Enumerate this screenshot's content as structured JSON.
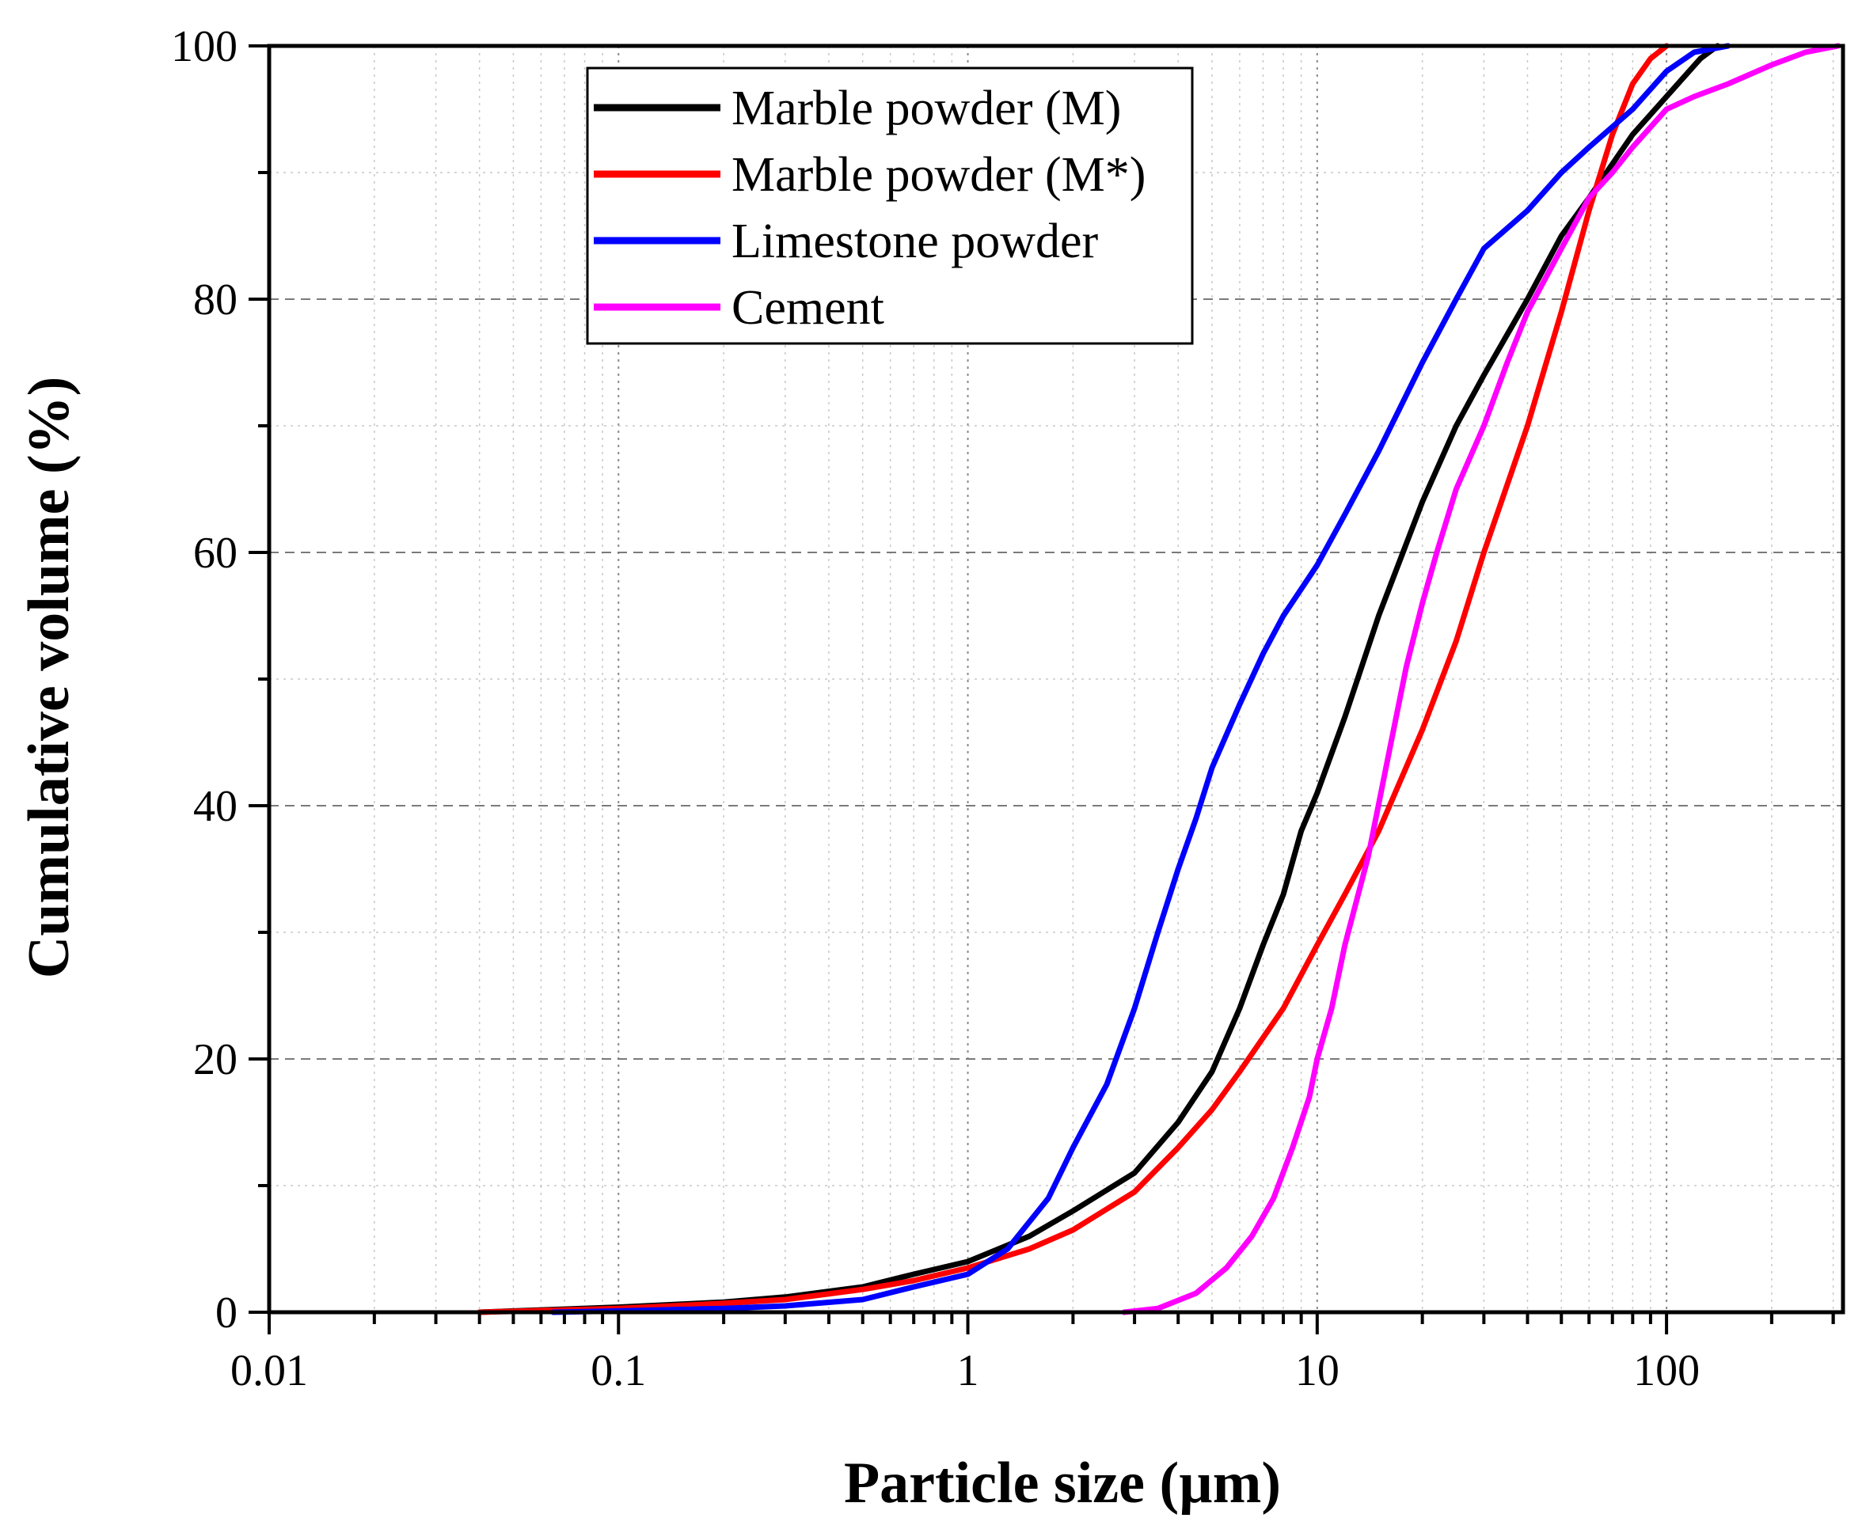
{
  "chart_data": {
    "type": "line",
    "title": "",
    "xlabel": "Particle size (µm)",
    "ylabel": "Cumulative volume (%)",
    "xscale": "log",
    "xlim": [
      0.01,
      320
    ],
    "ylim": [
      0,
      100
    ],
    "x_ticks": [
      {
        "value": 0.01,
        "label": "0.01"
      },
      {
        "value": 0.1,
        "label": "0.1"
      },
      {
        "value": 1,
        "label": "1"
      },
      {
        "value": 10,
        "label": "10"
      },
      {
        "value": 100,
        "label": "100"
      }
    ],
    "y_ticks": [
      {
        "value": 0,
        "label": "0"
      },
      {
        "value": 20,
        "label": "20"
      },
      {
        "value": 40,
        "label": "40"
      },
      {
        "value": 60,
        "label": "60"
      },
      {
        "value": 80,
        "label": "80"
      },
      {
        "value": 100,
        "label": "100"
      }
    ],
    "grid": true,
    "legend_position": "top-left",
    "series": [
      {
        "name": "Marble powder (M)",
        "color": "#000000",
        "points": [
          [
            0.04,
            0
          ],
          [
            0.1,
            0.4
          ],
          [
            0.2,
            0.8
          ],
          [
            0.3,
            1.2
          ],
          [
            0.5,
            2
          ],
          [
            0.7,
            3
          ],
          [
            1,
            4
          ],
          [
            1.5,
            6
          ],
          [
            2,
            8
          ],
          [
            3,
            11
          ],
          [
            4,
            15
          ],
          [
            5,
            19
          ],
          [
            6,
            24
          ],
          [
            7,
            29
          ],
          [
            8,
            33
          ],
          [
            9,
            38
          ],
          [
            10,
            41
          ],
          [
            12,
            47
          ],
          [
            15,
            55
          ],
          [
            20,
            64
          ],
          [
            25,
            70
          ],
          [
            30,
            74
          ],
          [
            40,
            80
          ],
          [
            50,
            85
          ],
          [
            60,
            88
          ],
          [
            80,
            93
          ],
          [
            100,
            96
          ],
          [
            125,
            99
          ],
          [
            140,
            100
          ]
        ]
      },
      {
        "name": "Marble powder (M*)",
        "color": "#ff0000",
        "points": [
          [
            0.04,
            0
          ],
          [
            0.1,
            0.3
          ],
          [
            0.2,
            0.7
          ],
          [
            0.3,
            1
          ],
          [
            0.5,
            1.8
          ],
          [
            0.7,
            2.5
          ],
          [
            1,
            3.5
          ],
          [
            1.5,
            5
          ],
          [
            2,
            6.5
          ],
          [
            3,
            9.5
          ],
          [
            4,
            13
          ],
          [
            5,
            16
          ],
          [
            6,
            19
          ],
          [
            8,
            24
          ],
          [
            10,
            29
          ],
          [
            12,
            33
          ],
          [
            15,
            38
          ],
          [
            20,
            46
          ],
          [
            25,
            53
          ],
          [
            30,
            60
          ],
          [
            40,
            70
          ],
          [
            50,
            79
          ],
          [
            60,
            87
          ],
          [
            70,
            93
          ],
          [
            80,
            97
          ],
          [
            90,
            99
          ],
          [
            100,
            100
          ]
        ]
      },
      {
        "name": "Limestone powder",
        "color": "#0000ff",
        "points": [
          [
            0.065,
            0
          ],
          [
            0.1,
            0.1
          ],
          [
            0.2,
            0.3
          ],
          [
            0.3,
            0.5
          ],
          [
            0.5,
            1
          ],
          [
            0.7,
            2
          ],
          [
            1,
            3
          ],
          [
            1.3,
            5
          ],
          [
            1.7,
            9
          ],
          [
            2,
            13
          ],
          [
            2.5,
            18
          ],
          [
            3,
            24
          ],
          [
            3.5,
            30
          ],
          [
            4,
            35
          ],
          [
            4.5,
            39
          ],
          [
            5,
            43
          ],
          [
            6,
            48
          ],
          [
            7,
            52
          ],
          [
            8,
            55
          ],
          [
            10,
            59
          ],
          [
            12,
            63
          ],
          [
            15,
            68
          ],
          [
            20,
            75
          ],
          [
            25,
            80
          ],
          [
            30,
            84
          ],
          [
            40,
            87
          ],
          [
            50,
            90
          ],
          [
            60,
            92
          ],
          [
            80,
            95
          ],
          [
            100,
            98
          ],
          [
            120,
            99.5
          ],
          [
            150,
            100
          ]
        ]
      },
      {
        "name": "Cement",
        "color": "#ff00ff",
        "points": [
          [
            2.8,
            0
          ],
          [
            3.5,
            0.3
          ],
          [
            4.5,
            1.5
          ],
          [
            5.5,
            3.5
          ],
          [
            6.5,
            6
          ],
          [
            7.5,
            9
          ],
          [
            8.5,
            13
          ],
          [
            9.5,
            17
          ],
          [
            10,
            20
          ],
          [
            11,
            24
          ],
          [
            12,
            29
          ],
          [
            14,
            36
          ],
          [
            16,
            44
          ],
          [
            18,
            51
          ],
          [
            20,
            56
          ],
          [
            22,
            60
          ],
          [
            25,
            65
          ],
          [
            30,
            70
          ],
          [
            35,
            75
          ],
          [
            40,
            79
          ],
          [
            50,
            84
          ],
          [
            60,
            88
          ],
          [
            70,
            90
          ],
          [
            80,
            92
          ],
          [
            100,
            95
          ],
          [
            120,
            96
          ],
          [
            150,
            97
          ],
          [
            200,
            98.5
          ],
          [
            250,
            99.5
          ],
          [
            310,
            100
          ]
        ]
      }
    ]
  }
}
